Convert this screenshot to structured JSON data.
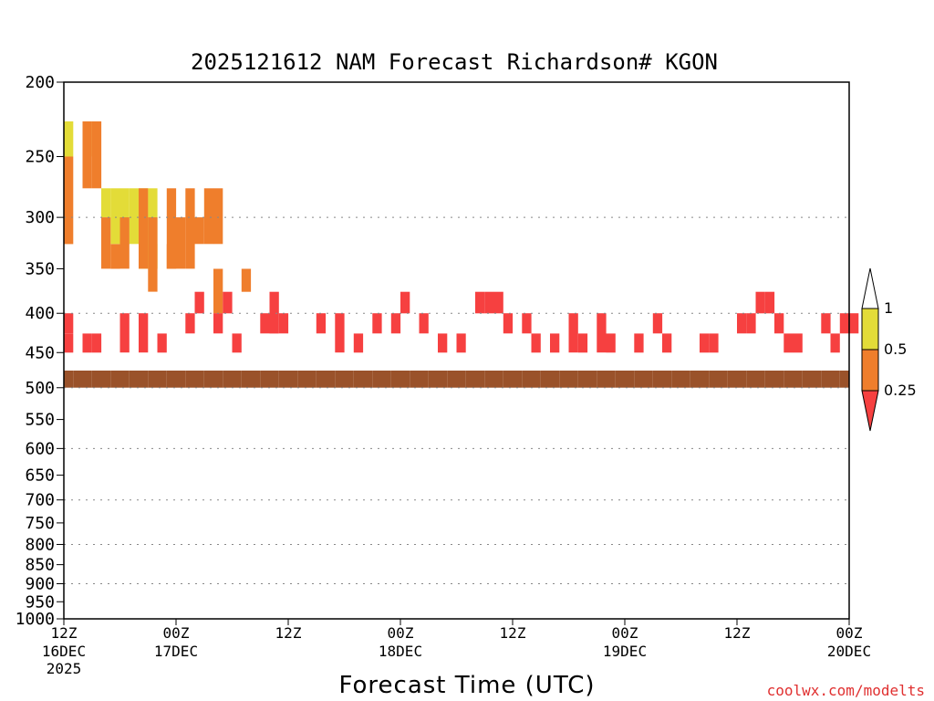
{
  "chart_data": {
    "type": "heatmap",
    "title": "2025121612 NAM Forecast Richardson# KGON",
    "xlabel": "Forecast Time (UTC)",
    "ylabel": "",
    "watermark": "coolwx.com/modelts",
    "x_range_hours": [
      0,
      84
    ],
    "y_range_hpa": [
      200,
      1000
    ],
    "x_ticks": [
      {
        "hour": 0,
        "label": "12Z",
        "sub": "16DEC",
        "year": "2025"
      },
      {
        "hour": 12,
        "label": "00Z",
        "sub": "17DEC",
        "year": ""
      },
      {
        "hour": 24,
        "label": "12Z",
        "sub": "",
        "year": ""
      },
      {
        "hour": 36,
        "label": "00Z",
        "sub": "18DEC",
        "year": ""
      },
      {
        "hour": 48,
        "label": "12Z",
        "sub": "",
        "year": ""
      },
      {
        "hour": 60,
        "label": "00Z",
        "sub": "19DEC",
        "year": ""
      },
      {
        "hour": 72,
        "label": "12Z",
        "sub": "",
        "year": ""
      },
      {
        "hour": 84,
        "label": "00Z",
        "sub": "20DEC",
        "year": ""
      }
    ],
    "y_ticks": [
      200,
      250,
      300,
      350,
      400,
      450,
      500,
      550,
      600,
      650,
      700,
      750,
      800,
      850,
      900,
      950,
      1000
    ],
    "gridlines_hpa": [
      300,
      400,
      500,
      600,
      700,
      800,
      900
    ],
    "legend": {
      "position": "right",
      "labels": [
        "1",
        "0.5",
        "0.25"
      ],
      "levels": [
        {
          "range": [
            0.5,
            1
          ],
          "color": "#e3dc38"
        },
        {
          "range": [
            0.25,
            0.5
          ],
          "color": "#ef7e2c"
        },
        {
          "range": [
            0,
            0.25
          ],
          "color": "#f64040"
        }
      ]
    },
    "cell_size": {
      "hours": 1,
      "hpa": 25
    },
    "cells": [
      [
        [
          0,
          1,
          2
        ],
        [
          2,
          1,
          2
        ],
        [
          4,
          3,
          4
        ],
        [
          5,
          3,
          5
        ],
        [
          6,
          3,
          5
        ],
        [
          7,
          3,
          5
        ],
        [
          8,
          3,
          6
        ],
        [
          9,
          3,
          6
        ],
        [
          9,
          5,
          6
        ]
      ],
      [
        [
          0,
          2,
          5
        ],
        [
          2,
          1,
          3
        ],
        [
          3,
          1,
          3
        ],
        [
          4,
          4,
          6
        ],
        [
          5,
          5,
          6
        ],
        [
          6,
          4,
          6
        ],
        [
          8,
          3,
          6
        ],
        [
          9,
          4,
          7
        ],
        [
          11,
          3,
          6
        ],
        [
          11,
          5,
          6
        ],
        [
          12,
          4,
          6
        ],
        [
          13,
          3,
          6
        ],
        [
          14,
          4,
          5
        ],
        [
          15,
          3,
          5
        ],
        [
          16,
          3,
          5
        ],
        [
          16,
          6,
          8
        ],
        [
          19,
          6,
          7
        ]
      ],
      [
        [
          0,
          8,
          9
        ],
        [
          0,
          9,
          10
        ],
        [
          2,
          9,
          10
        ],
        [
          3,
          9,
          10
        ],
        [
          6,
          8,
          10
        ],
        [
          8,
          8,
          10
        ],
        [
          10,
          9,
          10
        ],
        [
          13,
          8,
          9
        ],
        [
          14,
          7,
          8
        ],
        [
          16,
          8,
          9
        ],
        [
          17,
          7,
          8
        ],
        [
          18,
          9,
          10
        ],
        [
          21,
          8,
          9
        ],
        [
          22,
          7,
          9
        ],
        [
          23,
          8,
          9
        ],
        [
          27,
          8,
          9
        ],
        [
          29,
          8,
          10
        ],
        [
          31,
          9,
          10
        ],
        [
          33,
          8,
          9
        ],
        [
          35,
          8,
          9
        ],
        [
          36,
          7,
          8
        ],
        [
          38,
          8,
          9
        ],
        [
          40,
          9,
          10
        ],
        [
          42,
          9,
          10
        ],
        [
          44,
          7,
          8
        ],
        [
          45,
          7,
          8
        ],
        [
          46,
          7,
          8
        ],
        [
          47,
          8,
          9
        ],
        [
          49,
          8,
          9
        ],
        [
          50,
          9,
          10
        ],
        [
          52,
          9,
          10
        ],
        [
          54,
          8,
          10
        ],
        [
          55,
          9,
          10
        ],
        [
          57,
          8,
          10
        ],
        [
          58,
          9,
          10
        ],
        [
          61,
          9,
          10
        ],
        [
          63,
          8,
          9
        ],
        [
          64,
          9,
          10
        ],
        [
          68,
          9,
          10
        ],
        [
          69,
          9,
          10
        ],
        [
          72,
          8,
          9
        ],
        [
          73,
          8,
          9
        ],
        [
          74,
          7,
          8
        ],
        [
          75,
          7,
          8
        ],
        [
          76,
          8,
          9
        ],
        [
          77,
          9,
          10
        ],
        [
          78,
          9,
          10
        ],
        [
          81,
          8,
          9
        ],
        [
          82,
          9,
          10
        ],
        [
          83,
          8,
          9
        ],
        [
          84,
          8,
          9
        ]
      ],
      [
        [
          0,
          11,
          12
        ],
        [
          1,
          11,
          12
        ],
        [
          2,
          11,
          12
        ],
        [
          3,
          11,
          12
        ],
        [
          4,
          11,
          12
        ],
        [
          5,
          11,
          12
        ],
        [
          6,
          11,
          12
        ],
        [
          7,
          11,
          12
        ],
        [
          8,
          11,
          12
        ],
        [
          9,
          11,
          12
        ],
        [
          10,
          11,
          12
        ],
        [
          11,
          11,
          12
        ],
        [
          12,
          11,
          12
        ],
        [
          13,
          11,
          12
        ],
        [
          14,
          11,
          12
        ],
        [
          15,
          11,
          12
        ],
        [
          16,
          11,
          12
        ],
        [
          17,
          11,
          12
        ],
        [
          18,
          11,
          12
        ],
        [
          19,
          11,
          12
        ],
        [
          20,
          11,
          12
        ],
        [
          21,
          11,
          12
        ],
        [
          22,
          11,
          12
        ],
        [
          23,
          11,
          12
        ],
        [
          24,
          11,
          12
        ],
        [
          25,
          11,
          12
        ],
        [
          26,
          11,
          12
        ],
        [
          27,
          11,
          12
        ],
        [
          28,
          11,
          12
        ],
        [
          29,
          11,
          12
        ],
        [
          30,
          11,
          12
        ],
        [
          31,
          11,
          12
        ],
        [
          32,
          11,
          12
        ],
        [
          33,
          11,
          12
        ],
        [
          34,
          11,
          12
        ],
        [
          35,
          11,
          12
        ],
        [
          36,
          11,
          12
        ],
        [
          37,
          11,
          12
        ],
        [
          38,
          11,
          12
        ],
        [
          39,
          11,
          12
        ],
        [
          40,
          11,
          12
        ],
        [
          41,
          11,
          12
        ],
        [
          42,
          11,
          12
        ],
        [
          43,
          11,
          12
        ],
        [
          44,
          11,
          12
        ],
        [
          45,
          11,
          12
        ],
        [
          46,
          11,
          12
        ],
        [
          47,
          11,
          12
        ],
        [
          48,
          11,
          12
        ],
        [
          49,
          11,
          12
        ],
        [
          50,
          11,
          12
        ],
        [
          51,
          11,
          12
        ],
        [
          52,
          11,
          12
        ],
        [
          53,
          11,
          12
        ],
        [
          54,
          11,
          12
        ],
        [
          55,
          11,
          12
        ],
        [
          56,
          11,
          12
        ],
        [
          57,
          11,
          12
        ],
        [
          58,
          11,
          12
        ],
        [
          59,
          11,
          12
        ],
        [
          60,
          11,
          12
        ],
        [
          61,
          11,
          12
        ],
        [
          62,
          11,
          12
        ],
        [
          63,
          11,
          12
        ],
        [
          64,
          11,
          12
        ],
        [
          65,
          11,
          12
        ],
        [
          66,
          11,
          12
        ],
        [
          67,
          11,
          12
        ],
        [
          68,
          11,
          12
        ],
        [
          69,
          11,
          12
        ],
        [
          70,
          11,
          12
        ],
        [
          71,
          11,
          12
        ],
        [
          72,
          11,
          12
        ],
        [
          73,
          11,
          12
        ],
        [
          74,
          11,
          12
        ],
        [
          75,
          11,
          12
        ],
        [
          76,
          11,
          12
        ],
        [
          77,
          11,
          12
        ],
        [
          78,
          11,
          12
        ],
        [
          79,
          11,
          12
        ],
        [
          80,
          11,
          12
        ],
        [
          81,
          11,
          12
        ],
        [
          82,
          11,
          12
        ],
        [
          83,
          11,
          12
        ]
      ]
    ]
  }
}
